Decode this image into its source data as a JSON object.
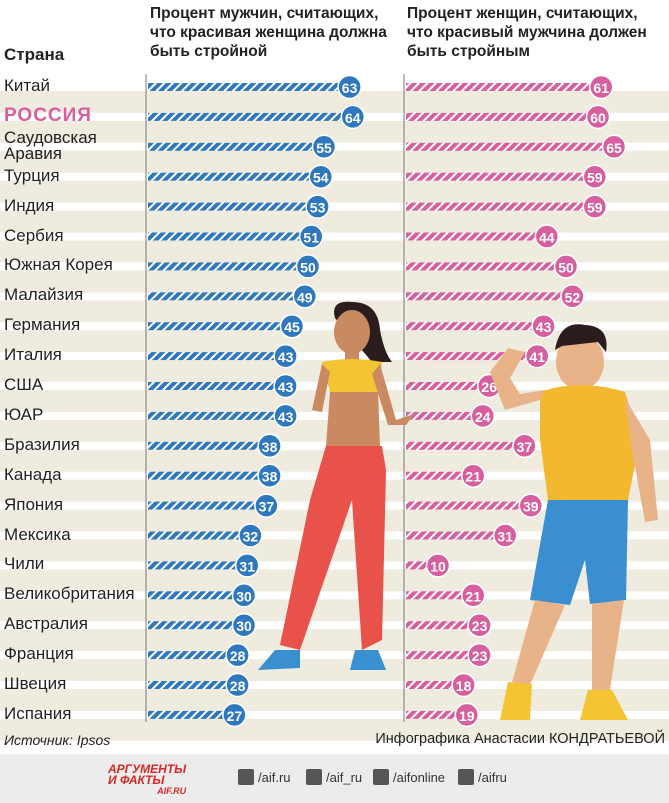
{
  "chart_data": {
    "type": "bar",
    "orientation": "horizontal",
    "category_header": "Страна",
    "categories": [
      "Китай",
      "РОССИЯ",
      "Саудовская Аравия",
      "Турция",
      "Индия",
      "Сербия",
      "Южная Корея",
      "Малайзия",
      "Германия",
      "Италия",
      "США",
      "ЮАР",
      "Бразилия",
      "Канада",
      "Япония",
      "Мексика",
      "Чили",
      "Великобритания",
      "Австралия",
      "Франция",
      "Швеция",
      "Испания"
    ],
    "series": [
      {
        "name": "Процент мужчин, считающих, что красивая женщина должна быть стройной",
        "color": "#2f78bd",
        "values": [
          63,
          64,
          55,
          54,
          53,
          51,
          50,
          49,
          45,
          43,
          43,
          43,
          38,
          38,
          37,
          32,
          31,
          30,
          30,
          28,
          28,
          27
        ]
      },
      {
        "name": "Процент женщин, считающих, что красивый мужчина должен быть стройным",
        "color": "#d6609e",
        "values": [
          61,
          60,
          65,
          59,
          59,
          44,
          50,
          52,
          43,
          41,
          26,
          24,
          37,
          21,
          39,
          31,
          10,
          21,
          23,
          23,
          18,
          19
        ]
      }
    ]
  },
  "footer": {
    "source": "Источник: Ipsos",
    "credit": "Инфографика Анастасии КОНДРАТЬЕВОЙ",
    "logo": [
      "АРГУМЕНТЫ",
      "И ФАКТЫ",
      "AIF.RU"
    ],
    "socials": [
      "/aif.ru",
      "/aif_ru",
      "/aifonline",
      "/aifru"
    ]
  }
}
